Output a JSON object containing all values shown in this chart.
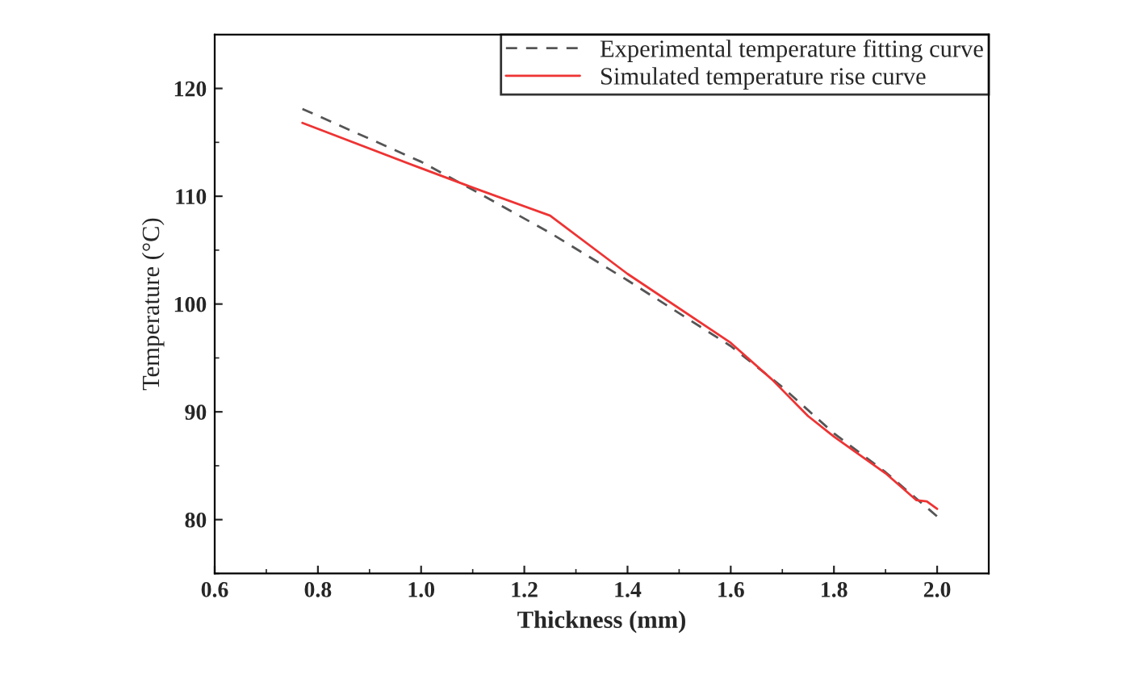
{
  "chart_data": {
    "type": "line",
    "xlabel": "Thickness (mm)",
    "ylabel": "Temperature (°C)",
    "xlim": [
      0.6,
      2.1
    ],
    "xticks": [
      {
        "value": 0.6,
        "label": "0.6"
      },
      {
        "value": 0.8,
        "label": "0.8"
      },
      {
        "value": 1.0,
        "label": "1.0"
      },
      {
        "value": 1.2,
        "label": "1.2"
      },
      {
        "value": 1.4,
        "label": "1.4"
      },
      {
        "value": 1.6,
        "label": "1.6"
      },
      {
        "value": 1.8,
        "label": "1.8"
      },
      {
        "value": 2.0,
        "label": "2.0"
      }
    ],
    "ylim": [
      75,
      125
    ],
    "yticks": [
      80,
      90,
      100,
      110,
      120
    ],
    "grid": false,
    "legend": "top right",
    "series": [
      {
        "name": "Experimental temperature fitting curve",
        "color": "#555555",
        "line_style": "dashed",
        "x": [
          0.77,
          1.0,
          1.1,
          1.25,
          1.4,
          1.6,
          1.7,
          1.8,
          1.9,
          2.0
        ],
        "values": [
          118.1,
          113.2,
          110.6,
          106.6,
          102.2,
          96.1,
          92.3,
          88.0,
          84.4,
          80.3
        ]
      },
      {
        "name": "Simulated temperature rise curve",
        "color": "#ee3333",
        "line_style": "solid",
        "x": [
          0.77,
          1.0,
          1.1,
          1.25,
          1.4,
          1.6,
          1.68,
          1.75,
          1.8,
          1.9,
          1.96,
          1.98,
          2.0
        ],
        "values": [
          116.8,
          112.6,
          110.8,
          108.2,
          102.8,
          96.4,
          93.0,
          89.6,
          87.7,
          84.3,
          81.8,
          81.7,
          81.0
        ]
      }
    ]
  }
}
